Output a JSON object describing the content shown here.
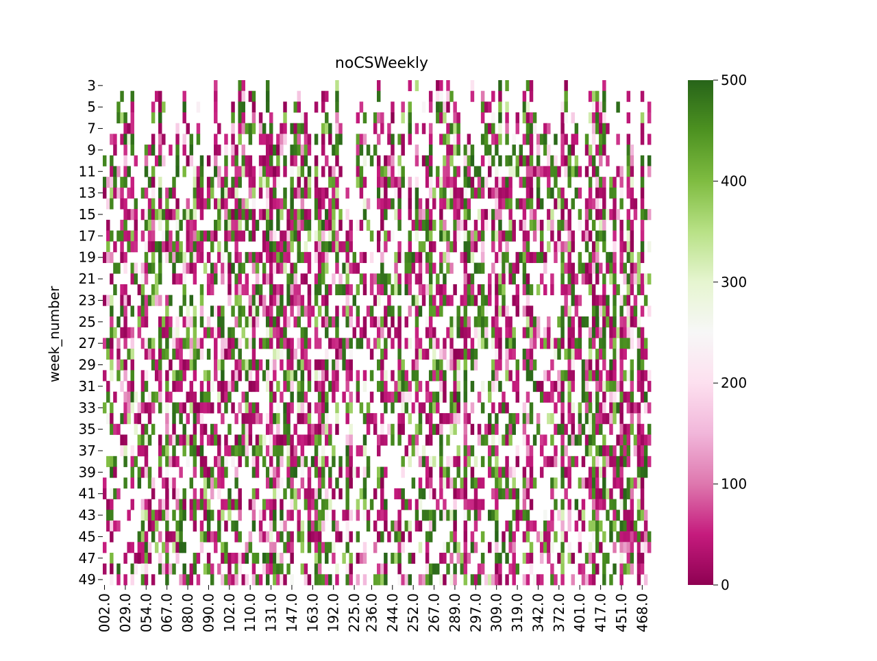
{
  "chart_data": {
    "type": "heatmap",
    "title": "noCSWeekly",
    "ylabel": "week_number",
    "xlabel": "",
    "y_values": [
      3,
      4,
      5,
      6,
      7,
      8,
      9,
      10,
      11,
      12,
      13,
      14,
      15,
      16,
      17,
      18,
      19,
      20,
      21,
      22,
      23,
      24,
      25,
      26,
      27,
      28,
      29,
      30,
      31,
      32,
      33,
      34,
      35,
      36,
      37,
      38,
      39,
      40,
      41,
      42,
      43,
      44,
      45,
      46,
      47,
      48,
      49
    ],
    "y_tick_labels": [
      "3",
      "5",
      "7",
      "9",
      "11",
      "13",
      "15",
      "17",
      "19",
      "21",
      "23",
      "25",
      "27",
      "29",
      "31",
      "33",
      "35",
      "37",
      "39",
      "41",
      "43",
      "45",
      "47",
      "49"
    ],
    "x_tick_labels": [
      "002.0",
      "029.0",
      "054.0",
      "067.0",
      "080.0",
      "090.0",
      "102.0",
      "110.0",
      "131.0",
      "147.0",
      "163.0",
      "192.0",
      "225.0",
      "236.0",
      "244.0",
      "252.0",
      "267.0",
      "289.0",
      "297.0",
      "309.0",
      "319.0",
      "342.0",
      "372.0",
      "401.0",
      "417.0",
      "451.0",
      "468.0"
    ],
    "column_count": 158,
    "value_range": [
      0,
      500
    ],
    "colorbar": {
      "ticks": [
        0,
        100,
        200,
        300,
        400,
        500
      ],
      "tick_labels": [
        "0",
        "100",
        "200",
        "300",
        "400",
        "500"
      ],
      "colormap": "PiYG",
      "stops": [
        "#8e0152",
        "#c51b7d",
        "#de77ae",
        "#f1b6da",
        "#fde0ef",
        "#f7f7f7",
        "#e6f5d0",
        "#b8e186",
        "#7fbc41",
        "#4d9221",
        "#276419"
      ]
    },
    "note_values": "cell values not printed; dense mix spanning 0–500 with many missing (blank) cells, more missing in later weeks"
  }
}
